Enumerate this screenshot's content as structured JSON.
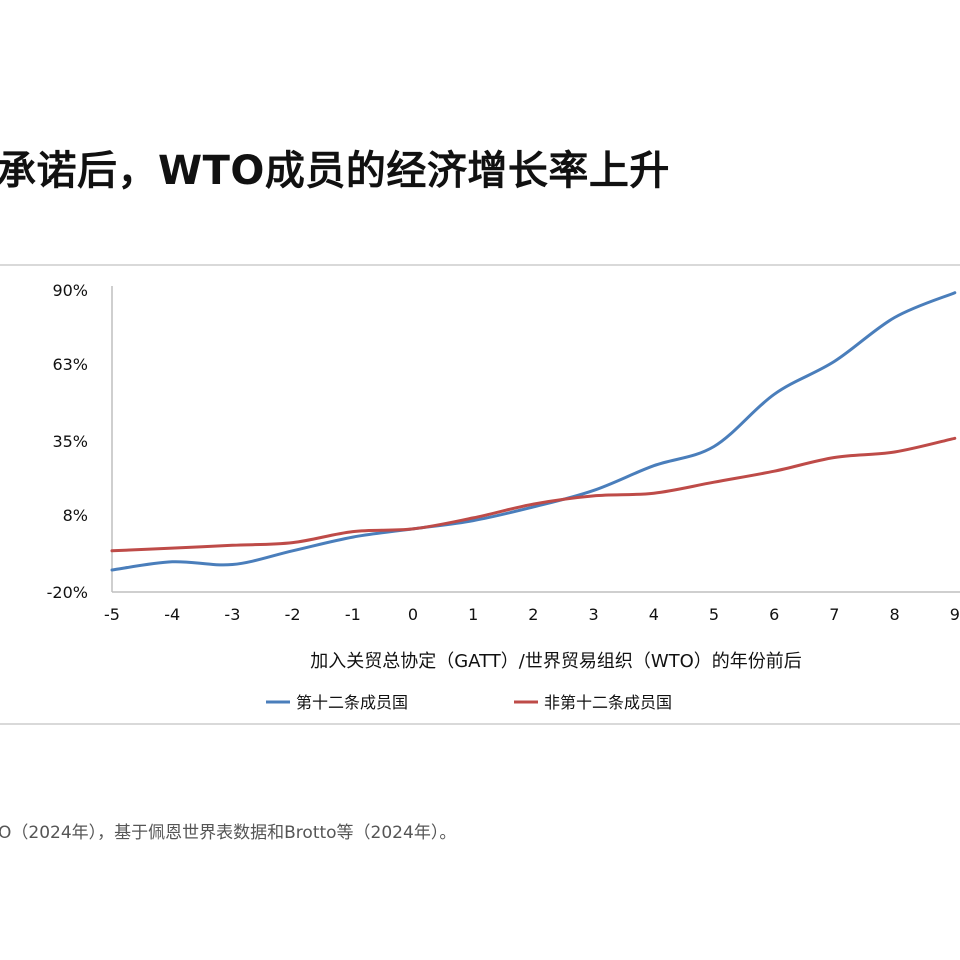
{
  "page": {
    "title": "承诺后，WTO成员的经济增长率上升",
    "source": "O（2024年），基于佩恩世界表数据和Brotto等（2024年）。"
  },
  "chart_data": {
    "type": "line",
    "title": "",
    "xlabel": "加入关贸总协定（GATT）/世界贸易组织（WTO）的年份前后",
    "ylabel": "",
    "x": [
      -5,
      -4,
      -3,
      -2,
      -1,
      0,
      1,
      2,
      3,
      4,
      5,
      6,
      7,
      8,
      9
    ],
    "x_ticks": [
      "-5",
      "-4",
      "-3",
      "-2",
      "-1",
      "0",
      "1",
      "2",
      "3",
      "4",
      "5",
      "6",
      "7",
      "8",
      "9"
    ],
    "y_ticks": [
      "90%",
      "63%",
      "35%",
      "8%",
      "-20%"
    ],
    "y_tick_values": [
      90,
      63,
      35,
      8,
      -20
    ],
    "ylim": [
      -20,
      90
    ],
    "grid": false,
    "legend_position": "bottom",
    "series": [
      {
        "name": "第十二条成员国",
        "color": "#4a7ebb",
        "values": [
          -12,
          -9,
          -10,
          -5,
          0,
          3,
          6,
          11,
          17,
          26,
          33,
          52,
          64,
          80,
          89
        ]
      },
      {
        "name": "非第十二条成员国",
        "color": "#be4b48",
        "values": [
          -5,
          -4,
          -3,
          -2,
          2,
          3,
          7,
          12,
          15,
          16,
          20,
          24,
          29,
          31,
          36
        ]
      }
    ]
  }
}
